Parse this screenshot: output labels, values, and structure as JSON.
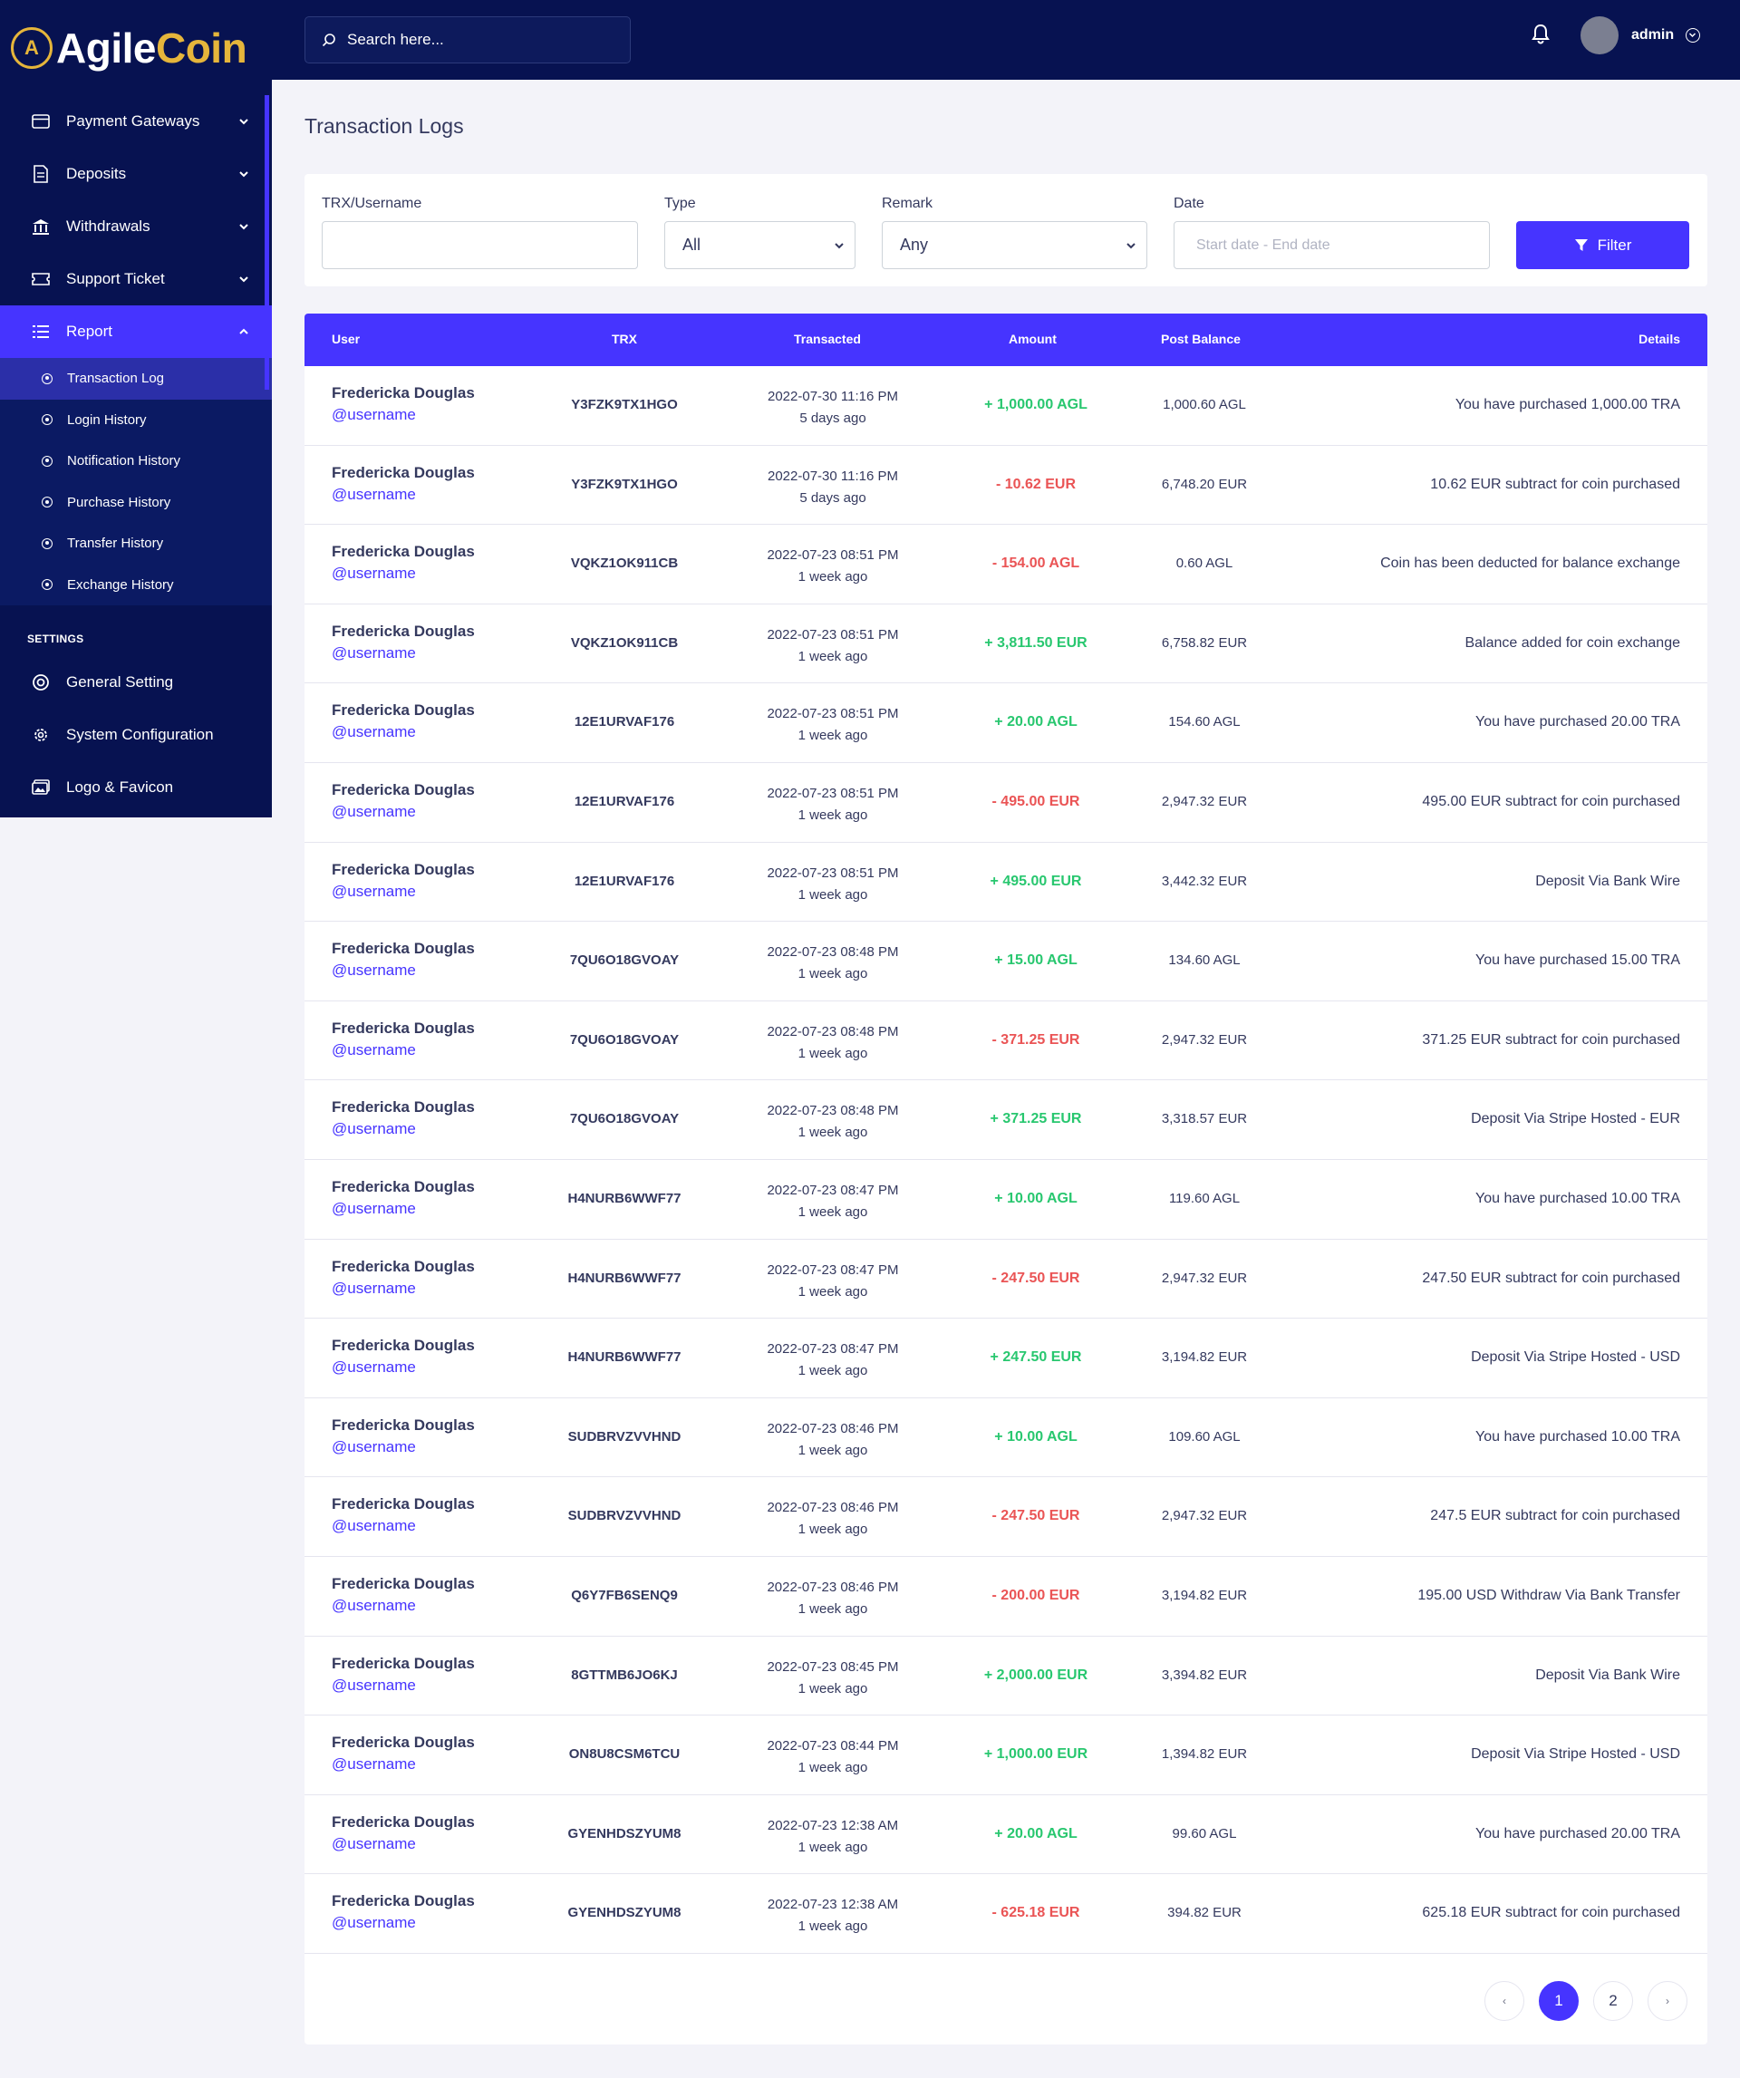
{
  "brand": {
    "logo_letter": "A",
    "name_part1": "Agile",
    "name_part2": "Coin"
  },
  "sidebar": {
    "items": [
      {
        "label": "Payment Gateways",
        "icon": "credit-card-icon"
      },
      {
        "label": "Deposits",
        "icon": "receipt-icon"
      },
      {
        "label": "Withdrawals",
        "icon": "bank-icon"
      },
      {
        "label": "Support Ticket",
        "icon": "ticket-icon"
      },
      {
        "label": "Report",
        "icon": "list-icon"
      }
    ],
    "report_submenu": [
      "Transaction Log",
      "Login History",
      "Notification History",
      "Purchase History",
      "Transfer History",
      "Exchange History"
    ],
    "settings_caption": "SETTINGS",
    "settings_items": [
      {
        "label": "General Setting",
        "icon": "life-ring-icon"
      },
      {
        "label": "System Configuration",
        "icon": "gear-icon"
      },
      {
        "label": "Logo & Favicon",
        "icon": "images-icon"
      }
    ]
  },
  "header": {
    "search_placeholder": "Search here...",
    "admin_name": "admin"
  },
  "page": {
    "title": "Transaction Logs"
  },
  "filters": {
    "trx_label": "TRX/Username",
    "trx_value": "",
    "type_label": "Type",
    "type_value": "All",
    "remark_label": "Remark",
    "remark_value": "Any",
    "date_label": "Date",
    "date_placeholder": "Start date - End date",
    "filter_button": "Filter"
  },
  "table": {
    "headers": {
      "user": "User",
      "trx": "TRX",
      "transacted": "Transacted",
      "amount": "Amount",
      "post_balance": "Post Balance",
      "details": "Details"
    },
    "rows": [
      {
        "name": "Fredericka Douglas",
        "username": "@username",
        "trx": "Y3FZK9TX1HGO",
        "date": "2022-07-30 11:16 PM",
        "ago": "5 days ago",
        "amount": "+ 1,000.00 AGL",
        "sign": "plus",
        "balance": "1,000.60 AGL",
        "details": "You have purchased 1,000.00 TRA"
      },
      {
        "name": "Fredericka Douglas",
        "username": "@username",
        "trx": "Y3FZK9TX1HGO",
        "date": "2022-07-30 11:16 PM",
        "ago": "5 days ago",
        "amount": "- 10.62 EUR",
        "sign": "minus",
        "balance": "6,748.20 EUR",
        "details": "10.62 EUR subtract for coin purchased"
      },
      {
        "name": "Fredericka Douglas",
        "username": "@username",
        "trx": "VQKZ1OK911CB",
        "date": "2022-07-23 08:51 PM",
        "ago": "1 week ago",
        "amount": "- 154.00 AGL",
        "sign": "minus",
        "balance": "0.60 AGL",
        "details": "Coin has been deducted for balance exchange"
      },
      {
        "name": "Fredericka Douglas",
        "username": "@username",
        "trx": "VQKZ1OK911CB",
        "date": "2022-07-23 08:51 PM",
        "ago": "1 week ago",
        "amount": "+ 3,811.50 EUR",
        "sign": "plus",
        "balance": "6,758.82 EUR",
        "details": "Balance added for coin exchange"
      },
      {
        "name": "Fredericka Douglas",
        "username": "@username",
        "trx": "12E1URVAF176",
        "date": "2022-07-23 08:51 PM",
        "ago": "1 week ago",
        "amount": "+ 20.00 AGL",
        "sign": "plus",
        "balance": "154.60 AGL",
        "details": "You have purchased 20.00 TRA"
      },
      {
        "name": "Fredericka Douglas",
        "username": "@username",
        "trx": "12E1URVAF176",
        "date": "2022-07-23 08:51 PM",
        "ago": "1 week ago",
        "amount": "- 495.00 EUR",
        "sign": "minus",
        "balance": "2,947.32 EUR",
        "details": "495.00 EUR subtract for coin purchased"
      },
      {
        "name": "Fredericka Douglas",
        "username": "@username",
        "trx": "12E1URVAF176",
        "date": "2022-07-23 08:51 PM",
        "ago": "1 week ago",
        "amount": "+ 495.00 EUR",
        "sign": "plus",
        "balance": "3,442.32 EUR",
        "details": "Deposit Via Bank Wire"
      },
      {
        "name": "Fredericka Douglas",
        "username": "@username",
        "trx": "7QU6O18GVOAY",
        "date": "2022-07-23 08:48 PM",
        "ago": "1 week ago",
        "amount": "+ 15.00 AGL",
        "sign": "plus",
        "balance": "134.60 AGL",
        "details": "You have purchased 15.00 TRA"
      },
      {
        "name": "Fredericka Douglas",
        "username": "@username",
        "trx": "7QU6O18GVOAY",
        "date": "2022-07-23 08:48 PM",
        "ago": "1 week ago",
        "amount": "- 371.25 EUR",
        "sign": "minus",
        "balance": "2,947.32 EUR",
        "details": "371.25 EUR subtract for coin purchased"
      },
      {
        "name": "Fredericka Douglas",
        "username": "@username",
        "trx": "7QU6O18GVOAY",
        "date": "2022-07-23 08:48 PM",
        "ago": "1 week ago",
        "amount": "+ 371.25 EUR",
        "sign": "plus",
        "balance": "3,318.57 EUR",
        "details": "Deposit Via Stripe Hosted - EUR"
      },
      {
        "name": "Fredericka Douglas",
        "username": "@username",
        "trx": "H4NURB6WWF77",
        "date": "2022-07-23 08:47 PM",
        "ago": "1 week ago",
        "amount": "+ 10.00 AGL",
        "sign": "plus",
        "balance": "119.60 AGL",
        "details": "You have purchased 10.00 TRA"
      },
      {
        "name": "Fredericka Douglas",
        "username": "@username",
        "trx": "H4NURB6WWF77",
        "date": "2022-07-23 08:47 PM",
        "ago": "1 week ago",
        "amount": "- 247.50 EUR",
        "sign": "minus",
        "balance": "2,947.32 EUR",
        "details": "247.50 EUR subtract for coin purchased"
      },
      {
        "name": "Fredericka Douglas",
        "username": "@username",
        "trx": "H4NURB6WWF77",
        "date": "2022-07-23 08:47 PM",
        "ago": "1 week ago",
        "amount": "+ 247.50 EUR",
        "sign": "plus",
        "balance": "3,194.82 EUR",
        "details": "Deposit Via Stripe Hosted - USD"
      },
      {
        "name": "Fredericka Douglas",
        "username": "@username",
        "trx": "SUDBRVZVVHND",
        "date": "2022-07-23 08:46 PM",
        "ago": "1 week ago",
        "amount": "+ 10.00 AGL",
        "sign": "plus",
        "balance": "109.60 AGL",
        "details": "You have purchased 10.00 TRA"
      },
      {
        "name": "Fredericka Douglas",
        "username": "@username",
        "trx": "SUDBRVZVVHND",
        "date": "2022-07-23 08:46 PM",
        "ago": "1 week ago",
        "amount": "- 247.50 EUR",
        "sign": "minus",
        "balance": "2,947.32 EUR",
        "details": "247.5 EUR subtract for coin purchased"
      },
      {
        "name": "Fredericka Douglas",
        "username": "@username",
        "trx": "Q6Y7FB6SENQ9",
        "date": "2022-07-23 08:46 PM",
        "ago": "1 week ago",
        "amount": "- 200.00 EUR",
        "sign": "minus",
        "balance": "3,194.82 EUR",
        "details": "195.00 USD Withdraw Via Bank Transfer"
      },
      {
        "name": "Fredericka Douglas",
        "username": "@username",
        "trx": "8GTTMB6JO6KJ",
        "date": "2022-07-23 08:45 PM",
        "ago": "1 week ago",
        "amount": "+ 2,000.00 EUR",
        "sign": "plus",
        "balance": "3,394.82 EUR",
        "details": "Deposit Via Bank Wire"
      },
      {
        "name": "Fredericka Douglas",
        "username": "@username",
        "trx": "ON8U8CSM6TCU",
        "date": "2022-07-23 08:44 PM",
        "ago": "1 week ago",
        "amount": "+ 1,000.00 EUR",
        "sign": "plus",
        "balance": "1,394.82 EUR",
        "details": "Deposit Via Stripe Hosted - USD"
      },
      {
        "name": "Fredericka Douglas",
        "username": "@username",
        "trx": "GYENHDSZYUM8",
        "date": "2022-07-23 12:38 AM",
        "ago": "1 week ago",
        "amount": "+ 20.00 AGL",
        "sign": "plus",
        "balance": "99.60 AGL",
        "details": "You have purchased 20.00 TRA"
      },
      {
        "name": "Fredericka Douglas",
        "username": "@username",
        "trx": "GYENHDSZYUM8",
        "date": "2022-07-23 12:38 AM",
        "ago": "1 week ago",
        "amount": "- 625.18 EUR",
        "sign": "minus",
        "balance": "394.82 EUR",
        "details": "625.18 EUR subtract for coin purchased"
      }
    ]
  },
  "pagination": {
    "prev": "‹",
    "pages": [
      "1",
      "2"
    ],
    "next": "›",
    "active": "1"
  },
  "colors": {
    "sidebar_bg": "#071251",
    "accent": "#4634ff",
    "gold": "#e5b53b",
    "positive": "#28c76f",
    "negative": "#ea5455"
  }
}
